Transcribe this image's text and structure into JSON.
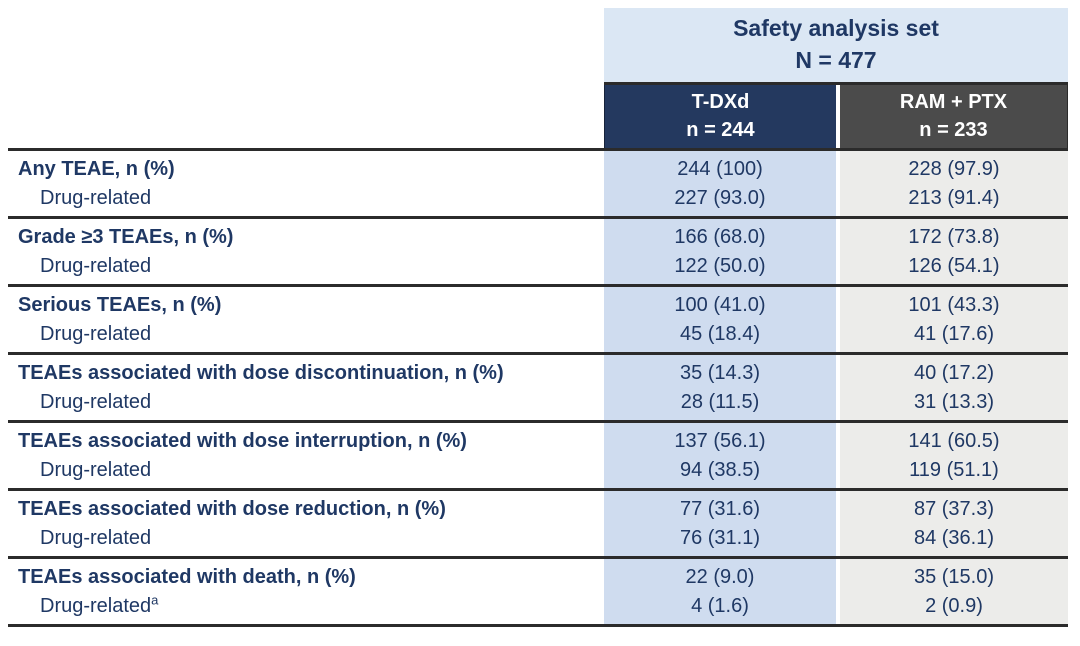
{
  "header": {
    "group_title_line1": "Safety analysis set",
    "group_title_line2": "N = 477",
    "columns": [
      {
        "id": "tdxd",
        "line1": "T-DXd",
        "line2": "n = 244"
      },
      {
        "id": "ram_ptx",
        "line1": "RAM + PTX",
        "line2": "n = 233"
      }
    ]
  },
  "rows": [
    {
      "label": "Any TEAE, n (%)",
      "tdxd": "244 (100)",
      "ram": "228 (97.9)",
      "sub_label": "Drug-related",
      "sub_sup": "",
      "sub_tdxd": "227 (93.0)",
      "sub_ram": "213 (91.4)"
    },
    {
      "label": "Grade ≥3 TEAEs, n (%)",
      "tdxd": "166 (68.0)",
      "ram": "172 (73.8)",
      "sub_label": "Drug-related",
      "sub_sup": "",
      "sub_tdxd": "122 (50.0)",
      "sub_ram": "126 (54.1)"
    },
    {
      "label": "Serious TEAEs, n (%)",
      "tdxd": "100 (41.0)",
      "ram": "101 (43.3)",
      "sub_label": "Drug-related",
      "sub_sup": "",
      "sub_tdxd": "45 (18.4)",
      "sub_ram": "41 (17.6)"
    },
    {
      "label": "TEAEs associated with dose discontinuation, n (%)",
      "tdxd": "35 (14.3)",
      "ram": "40 (17.2)",
      "sub_label": "Drug-related",
      "sub_sup": "",
      "sub_tdxd": "28 (11.5)",
      "sub_ram": "31 (13.3)"
    },
    {
      "label": "TEAEs associated with dose interruption, n (%)",
      "tdxd": "137 (56.1)",
      "ram": "141 (60.5)",
      "sub_label": "Drug-related",
      "sub_sup": "",
      "sub_tdxd": "94 (38.5)",
      "sub_ram": "119 (51.1)"
    },
    {
      "label": "TEAEs associated with dose reduction, n (%)",
      "tdxd": "77 (31.6)",
      "ram": "87 (37.3)",
      "sub_label": "Drug-related",
      "sub_sup": "",
      "sub_tdxd": "76 (31.1)",
      "sub_ram": "84 (36.1)"
    },
    {
      "label": "TEAEs associated with death, n (%)",
      "tdxd": "22 (9.0)",
      "ram": "35 (15.0)",
      "sub_label": "Drug-related",
      "sub_sup": "a",
      "sub_tdxd": "4 (1.6)",
      "sub_ram": "2 (0.9)"
    }
  ],
  "colors": {
    "banner_bg": "#dbe7f4",
    "tdxd_header_bg": "#24395f",
    "ram_header_bg": "#4b4b4b",
    "tdxd_column_bg": "#cfdcef",
    "ram_column_bg": "#ececea",
    "text_navy": "#1f3864",
    "rule_line": "#2b2b2b",
    "header_text": "#ffffff"
  },
  "chart_data": {
    "type": "table",
    "title": "Safety analysis set N = 477",
    "columns": [
      "",
      "T-DXd (n = 244)",
      "RAM + PTX (n = 233)"
    ],
    "rows": [
      [
        "Any TEAE, n (%)",
        "244 (100)",
        "228 (97.9)"
      ],
      [
        "Any TEAE: Drug-related",
        "227 (93.0)",
        "213 (91.4)"
      ],
      [
        "Grade ≥3 TEAEs, n (%)",
        "166 (68.0)",
        "172 (73.8)"
      ],
      [
        "Grade ≥3 TEAEs: Drug-related",
        "122 (50.0)",
        "126 (54.1)"
      ],
      [
        "Serious TEAEs, n (%)",
        "100 (41.0)",
        "101 (43.3)"
      ],
      [
        "Serious TEAEs: Drug-related",
        "45 (18.4)",
        "41 (17.6)"
      ],
      [
        "TEAEs associated with dose discontinuation, n (%)",
        "35 (14.3)",
        "40 (17.2)"
      ],
      [
        "TEAEs associated with dose discontinuation: Drug-related",
        "28 (11.5)",
        "31 (13.3)"
      ],
      [
        "TEAEs associated with dose interruption, n (%)",
        "137 (56.1)",
        "141 (60.5)"
      ],
      [
        "TEAEs associated with dose interruption: Drug-related",
        "94 (38.5)",
        "119 (51.1)"
      ],
      [
        "TEAEs associated with dose reduction, n (%)",
        "77 (31.6)",
        "87 (37.3)"
      ],
      [
        "TEAEs associated with dose reduction: Drug-related",
        "76 (31.1)",
        "84 (36.1)"
      ],
      [
        "TEAEs associated with death, n (%)",
        "22 (9.0)",
        "35 (15.0)"
      ],
      [
        "TEAEs associated with death: Drug-related(a)",
        "4 (1.6)",
        "2 (0.9)"
      ]
    ]
  }
}
